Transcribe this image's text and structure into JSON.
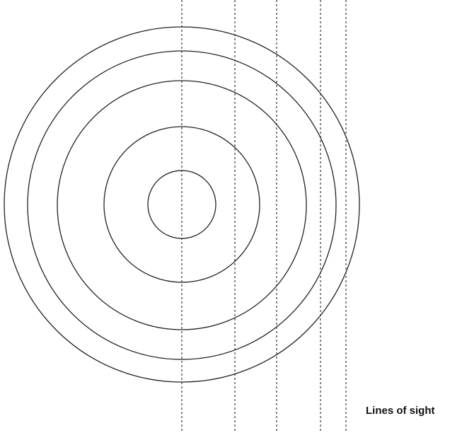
{
  "label": "Lines of sight"
}
